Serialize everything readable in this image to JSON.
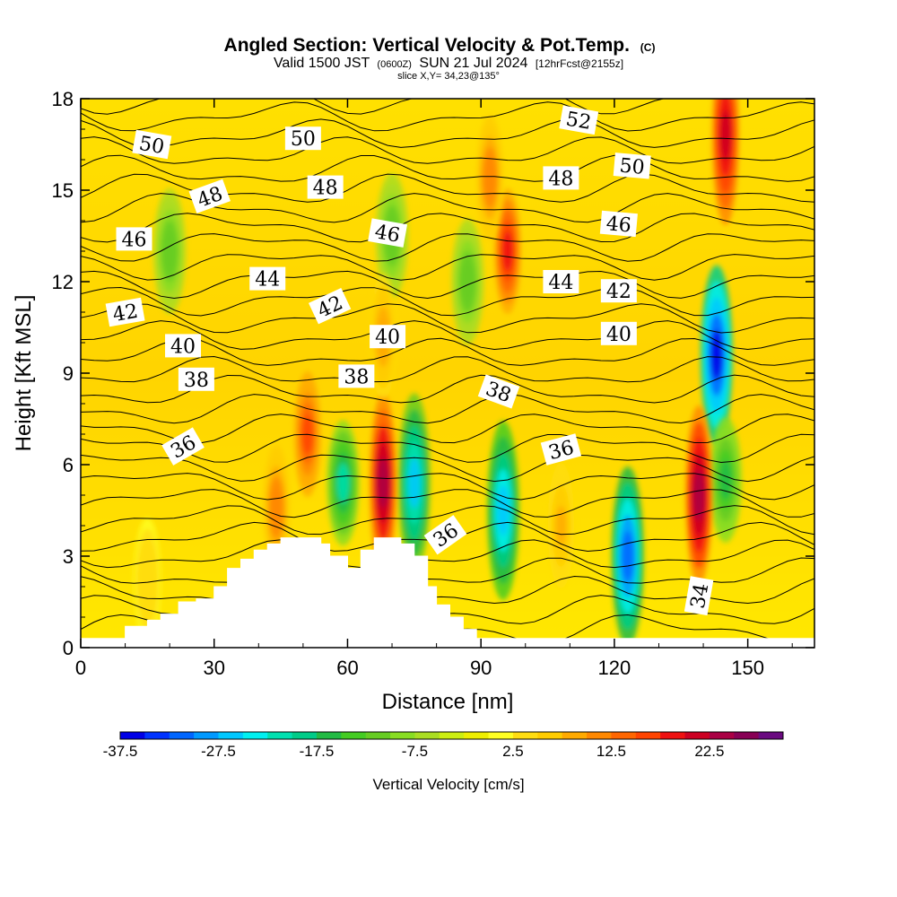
{
  "title": {
    "main": "Angled Section: Vertical Velocity & Pot.Temp.",
    "main_unit": "(C)",
    "valid_a": "Valid 1500 JST",
    "valid_z": "(0600Z)",
    "valid_b": "SUN 21 Jul 2024",
    "valid_fcst": "[12hrFcst@2155z]",
    "slice": "slice X,Y= 34,23@135°"
  },
  "chart_data": {
    "type": "heatmap",
    "xlabel": "Distance [nm]",
    "ylabel": "Height [Kft MSL]",
    "xlim": [
      0,
      165
    ],
    "ylim": [
      0,
      18
    ],
    "xticks": [
      0,
      30,
      60,
      90,
      120,
      150
    ],
    "yticks": [
      0,
      3,
      6,
      9,
      12,
      15,
      18
    ],
    "grid": false,
    "fill_field": "Vertical Velocity [cm/s]",
    "contour_field": "Potential temperature (C)",
    "colorbar": {
      "label": "Vertical Velocity [cm/s]",
      "levels": [
        -37.5,
        -35,
        -32.5,
        -30,
        -27.5,
        -25,
        -22.5,
        -20,
        -17.5,
        -15,
        -12.5,
        -10,
        -7.5,
        -5,
        -2.5,
        0,
        2.5,
        5,
        7.5,
        10,
        12.5,
        15,
        17.5,
        20,
        22.5,
        25,
        27.5,
        30
      ],
      "tick_labels": [
        "-37.5",
        "-27.5",
        "-17.5",
        "-7.5",
        "2.5",
        "12.5",
        "22.5"
      ],
      "tick_values": [
        -37.5,
        -27.5,
        -17.5,
        -7.5,
        2.5,
        12.5,
        22.5
      ],
      "colors": [
        "#0000e6",
        "#0033ff",
        "#0066ff",
        "#0099ff",
        "#00c8ff",
        "#00f0f0",
        "#00e0b0",
        "#00cc88",
        "#22bb44",
        "#44cc22",
        "#66cc22",
        "#88dd22",
        "#aadd22",
        "#ccee11",
        "#eeee00",
        "#ffff22",
        "#ffdd11",
        "#ffcc00",
        "#ffaa00",
        "#ff8800",
        "#ff6600",
        "#ff4400",
        "#ee1111",
        "#cc0022",
        "#aa0044",
        "#880055",
        "#6a0a80"
      ]
    },
    "updraft_cores": [
      {
        "x": 15,
        "z": 2.2,
        "w": 5
      },
      {
        "x": 44,
        "z": 4.6,
        "w": 12
      },
      {
        "x": 51,
        "z": 7.0,
        "w": 16
      },
      {
        "x": 68,
        "z": 5.4,
        "w": 24
      },
      {
        "x": 68,
        "z": 10.2,
        "w": 10
      },
      {
        "x": 96,
        "z": 13.0,
        "w": 20
      },
      {
        "x": 92,
        "z": 15.4,
        "w": 12
      },
      {
        "x": 108,
        "z": 4.0,
        "w": 8
      },
      {
        "x": 139,
        "z": 5.0,
        "w": 25
      },
      {
        "x": 145,
        "z": 16.8,
        "w": 22
      }
    ],
    "downdraft_cores": [
      {
        "x": 59,
        "z": 5.4,
        "w": -20
      },
      {
        "x": 75,
        "z": 5.4,
        "w": -25
      },
      {
        "x": 95,
        "z": 4.5,
        "w": -27
      },
      {
        "x": 123,
        "z": 3.0,
        "w": -32
      },
      {
        "x": 143,
        "z": 9.6,
        "w": -37
      },
      {
        "x": 145,
        "z": 5.5,
        "w": -16
      },
      {
        "x": 20,
        "z": 13.0,
        "w": -12
      },
      {
        "x": 87,
        "z": 12.0,
        "w": -12
      },
      {
        "x": 70,
        "z": 13.5,
        "w": -12
      }
    ],
    "terrain": {
      "x": [
        0,
        10,
        15,
        18,
        22,
        26,
        30,
        33,
        36,
        39,
        42,
        45,
        48,
        51,
        54,
        56,
        60,
        63,
        66,
        69,
        72,
        75,
        78,
        80,
        83,
        86,
        89,
        91,
        165
      ],
      "z": [
        0.3,
        0.7,
        0.9,
        1.1,
        1.5,
        1.6,
        2.0,
        2.6,
        2.9,
        3.2,
        3.4,
        3.6,
        3.6,
        3.6,
        3.4,
        3.0,
        2.6,
        3.2,
        3.6,
        3.6,
        3.4,
        3.0,
        2.0,
        1.4,
        1.0,
        0.6,
        0.3,
        0.3,
        0.3
      ]
    },
    "contour_labels": [
      {
        "text": "50",
        "x": 16,
        "z": 16.5,
        "angle": 10
      },
      {
        "text": "50",
        "x": 50,
        "z": 16.7,
        "angle": 0
      },
      {
        "text": "52",
        "x": 112,
        "z": 17.3,
        "angle": 10
      },
      {
        "text": "50",
        "x": 124,
        "z": 15.8,
        "angle": 5
      },
      {
        "text": "48",
        "x": 29,
        "z": 14.8,
        "angle": -20
      },
      {
        "text": "48",
        "x": 55,
        "z": 15.1,
        "angle": 0
      },
      {
        "text": "48",
        "x": 108,
        "z": 15.4,
        "angle": 0
      },
      {
        "text": "46",
        "x": 12,
        "z": 13.4,
        "angle": 0
      },
      {
        "text": "46",
        "x": 69,
        "z": 13.6,
        "angle": 10
      },
      {
        "text": "46",
        "x": 121,
        "z": 13.9,
        "angle": 5
      },
      {
        "text": "44",
        "x": 42,
        "z": 12.1,
        "angle": 0
      },
      {
        "text": "44",
        "x": 108,
        "z": 12.0,
        "angle": 0
      },
      {
        "text": "42",
        "x": 10,
        "z": 11.0,
        "angle": -10
      },
      {
        "text": "42",
        "x": 56,
        "z": 11.2,
        "angle": -25
      },
      {
        "text": "42",
        "x": 121,
        "z": 11.7,
        "angle": 0
      },
      {
        "text": "40",
        "x": 23,
        "z": 9.9,
        "angle": 0
      },
      {
        "text": "40",
        "x": 69,
        "z": 10.2,
        "angle": 0
      },
      {
        "text": "40",
        "x": 121,
        "z": 10.3,
        "angle": 0
      },
      {
        "text": "38",
        "x": 26,
        "z": 8.8,
        "angle": 0
      },
      {
        "text": "38",
        "x": 62,
        "z": 8.9,
        "angle": 0
      },
      {
        "text": "38",
        "x": 94,
        "z": 8.4,
        "angle": 20
      },
      {
        "text": "36",
        "x": 23,
        "z": 6.6,
        "angle": -30
      },
      {
        "text": "36",
        "x": 108,
        "z": 6.5,
        "angle": -15
      },
      {
        "text": "36",
        "x": 82,
        "z": 3.7,
        "angle": -35
      },
      {
        "text": "34",
        "x": 139,
        "z": 1.7,
        "angle": -80
      }
    ]
  }
}
